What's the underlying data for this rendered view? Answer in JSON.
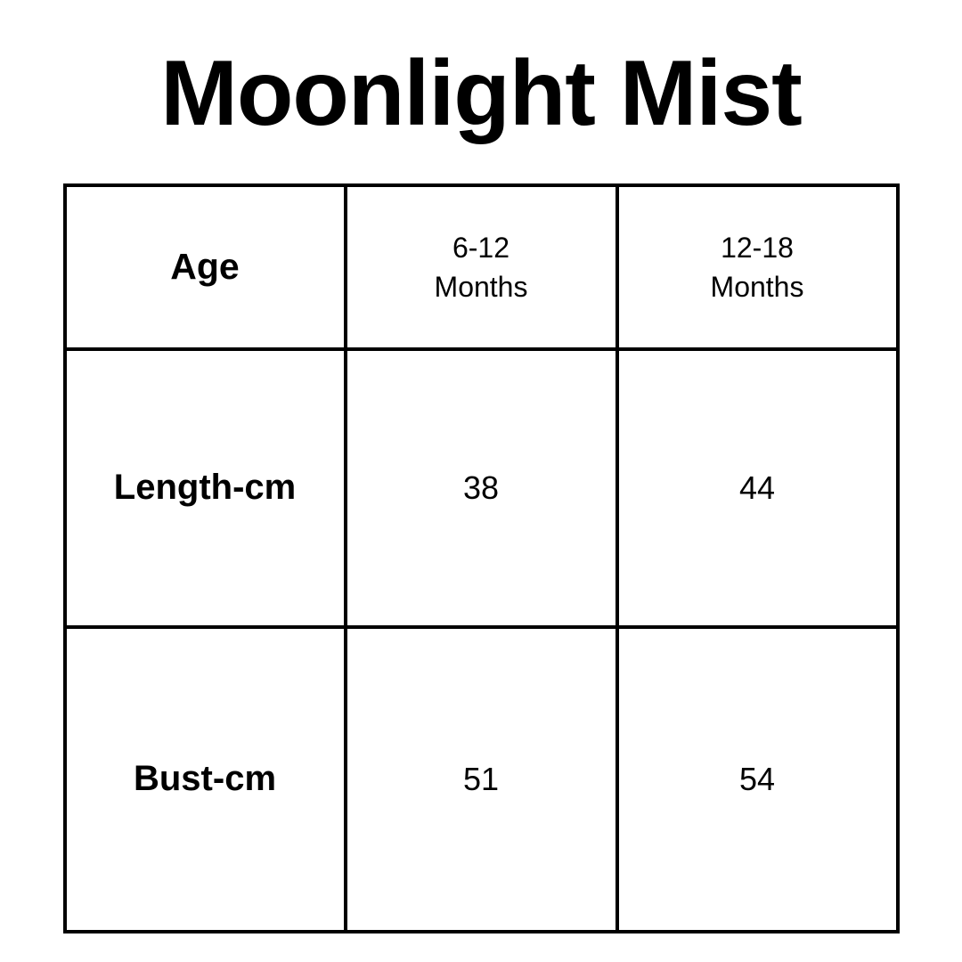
{
  "page": {
    "title": "Moonlight Mist",
    "background_color": "#ffffff",
    "text_color": "#000000",
    "border_color": "#000000"
  },
  "table": {
    "header_row": {
      "label": "Age",
      "columns": [
        {
          "line1": "6-12",
          "line2": "Months"
        },
        {
          "line1": "12-18",
          "line2": "Months"
        }
      ]
    },
    "rows": [
      {
        "label": "Length-cm",
        "values": [
          "38",
          "44"
        ]
      },
      {
        "label": "Bust-cm",
        "values": [
          "51",
          "54"
        ]
      }
    ]
  },
  "chart_data": {
    "type": "table",
    "title": "Moonlight Mist",
    "columns": [
      "Age",
      "6-12 Months",
      "12-18 Months"
    ],
    "rows": [
      [
        "Length-cm",
        38,
        44
      ],
      [
        "Bust-cm",
        51,
        54
      ]
    ]
  }
}
